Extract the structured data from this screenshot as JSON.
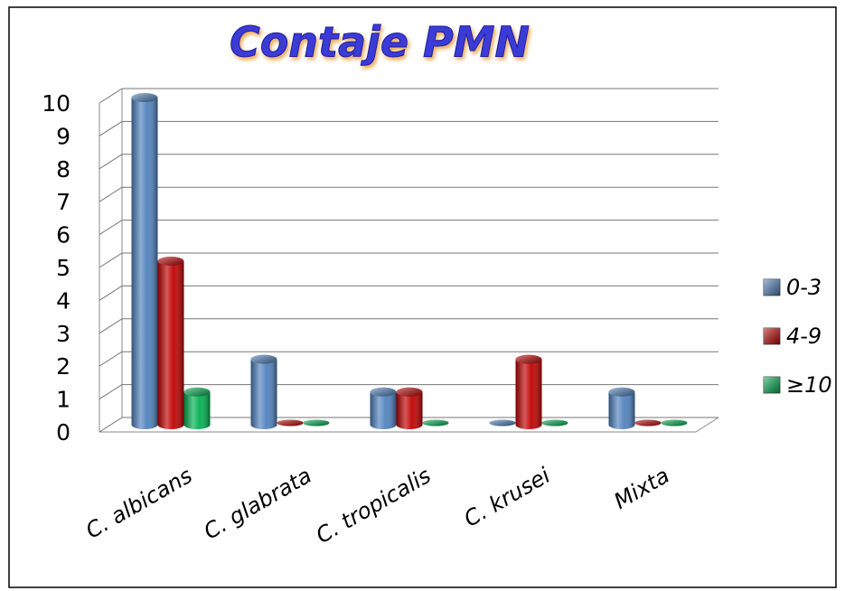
{
  "chart_data": {
    "type": "bar3d",
    "title": "Contaje PMN",
    "categories": [
      "C. albicans",
      "C. glabrata",
      "C. tropicalis",
      "C. krusei",
      "Mixta"
    ],
    "series": [
      {
        "name": "0-3",
        "color": "#4f81bd",
        "values": [
          10,
          2,
          1,
          0,
          1
        ]
      },
      {
        "name": "4-9",
        "color": "#c00000",
        "values": [
          5,
          0,
          1,
          2,
          0
        ]
      },
      {
        "name": "≥10",
        "color": "#00b050",
        "values": [
          1,
          0,
          0,
          0,
          0
        ]
      }
    ],
    "ylim": [
      0,
      10
    ],
    "yticks": [
      0,
      1,
      2,
      3,
      4,
      5,
      6,
      7,
      8,
      9,
      10
    ],
    "grid": true,
    "legend": "right"
  }
}
